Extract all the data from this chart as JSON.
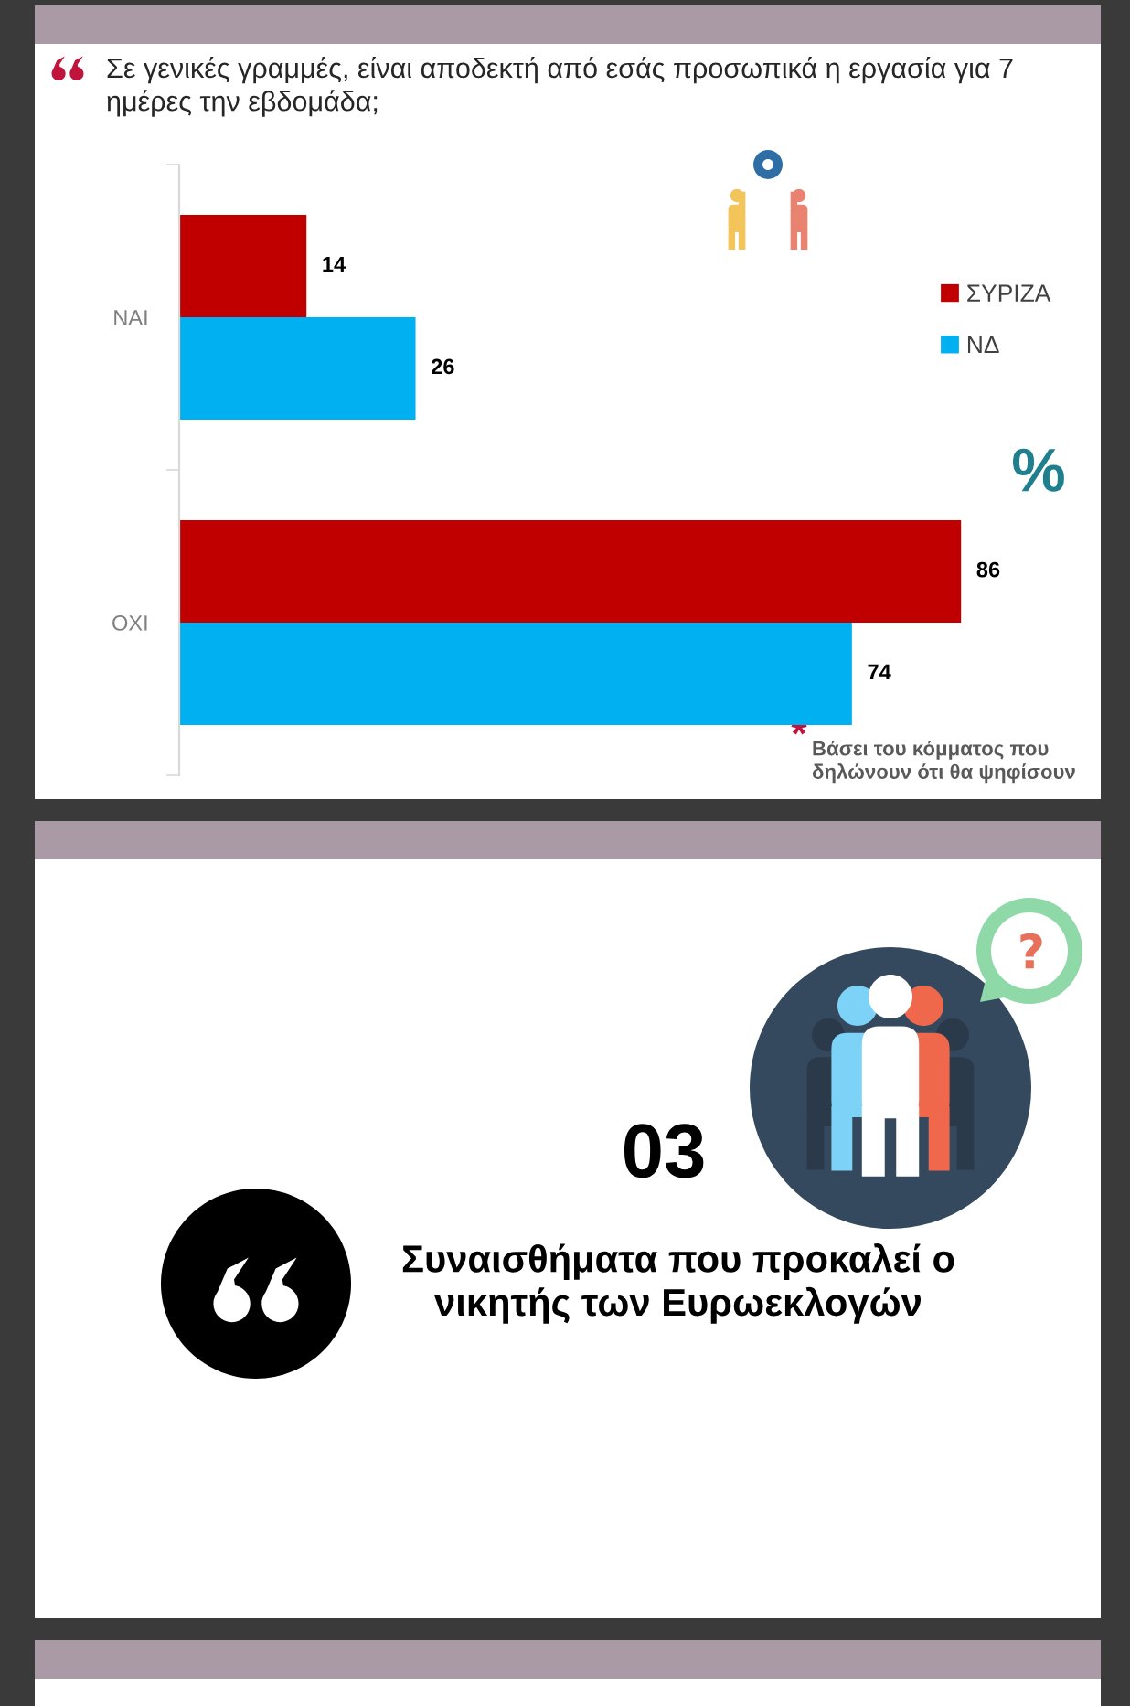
{
  "chart_data": {
    "type": "bar",
    "orientation": "horizontal",
    "title": "Σε γενικές γραμμές, είναι αποδεκτή από εσάς προσωπικά η εργασία για 7 ημέρες την εβδομάδα;",
    "categories": [
      "ΝΑΙ",
      "ΟΧΙ"
    ],
    "series": [
      {
        "name": "ΣΥΡΙΖΑ",
        "color": "#c00000",
        "values": [
          14,
          86
        ]
      },
      {
        "name": "ΝΔ",
        "color": "#00b0f0",
        "values": [
          26,
          74
        ]
      }
    ],
    "data_labels": true,
    "legend": "top right",
    "grid": false,
    "tick_labels": "y",
    "annotations": [
      "*",
      "Βάσει του κόμματος που δηλώνουν ότι θα ψηφίσουν",
      "%",
      "03",
      "Συναισθήματα που προκαλεί ο νικητής των Ευρωεκλογών"
    ]
  }
}
